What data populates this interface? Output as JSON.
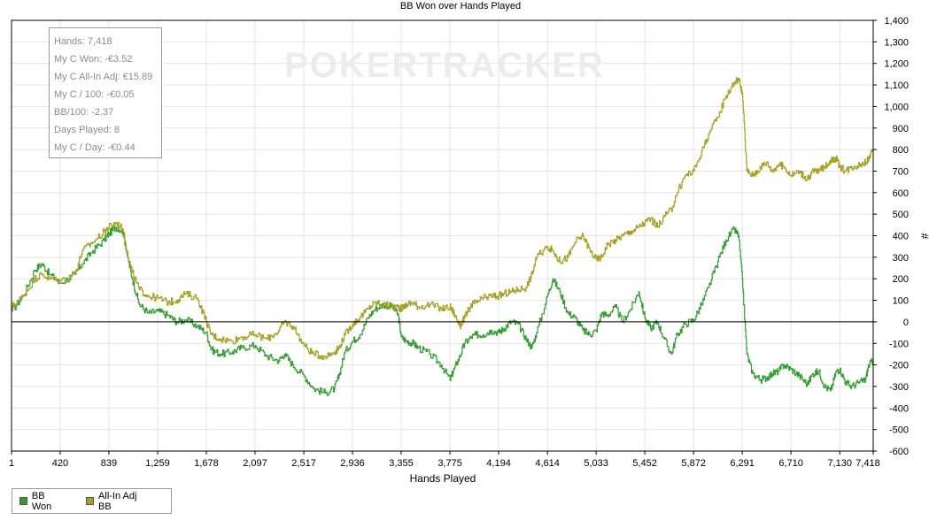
{
  "chart_data": {
    "type": "line",
    "title": "BB Won over Hands Played",
    "xlabel": "Hands Played",
    "ylabel": "#",
    "x_ticks": [
      "1",
      "420",
      "839",
      "1,259",
      "1,678",
      "2,097",
      "2,517",
      "2,936",
      "3,355",
      "3,775",
      "4,194",
      "4,614",
      "5,033",
      "5,452",
      "5,872",
      "6,291",
      "6,710",
      "7,130",
      "7,418"
    ],
    "x_tick_values": [
      1,
      420,
      839,
      1259,
      1678,
      2097,
      2517,
      2936,
      3355,
      3775,
      4194,
      4614,
      5033,
      5452,
      5872,
      6291,
      6710,
      7130,
      7418
    ],
    "xlim": [
      1,
      7418
    ],
    "y_ticks": [
      "1,400",
      "1,300",
      "1,200",
      "1,100",
      "1,000",
      "900",
      "800",
      "700",
      "600",
      "500",
      "400",
      "300",
      "200",
      "100",
      "0",
      "-100",
      "-200",
      "-300",
      "-400",
      "-500",
      "-600"
    ],
    "y_tick_values": [
      1400,
      1300,
      1200,
      1100,
      1000,
      900,
      800,
      700,
      600,
      500,
      400,
      300,
      200,
      100,
      0,
      -100,
      -200,
      -300,
      -400,
      -500,
      -600
    ],
    "ylim": [
      -600,
      1400
    ],
    "grid": true,
    "watermark": "POKERTRACKER",
    "legend_position": "bottom-left",
    "series": [
      {
        "name": "BB Won",
        "color": "#2ea02e",
        "x": [
          1,
          100,
          200,
          260,
          330,
          420,
          550,
          610,
          700,
          800,
          839,
          900,
          960,
          1000,
          1040,
          1100,
          1180,
          1259,
          1350,
          1420,
          1500,
          1600,
          1678,
          1720,
          1800,
          1900,
          1980,
          2097,
          2200,
          2300,
          2350,
          2420,
          2517,
          2600,
          2700,
          2780,
          2820,
          2870,
          2936,
          3000,
          3070,
          3130,
          3200,
          3280,
          3330,
          3355,
          3400,
          3460,
          3500,
          3600,
          3700,
          3775,
          3810,
          3860,
          3900,
          3960,
          4000,
          4060,
          4130,
          4194,
          4240,
          4300,
          4360,
          4430,
          4480,
          4520,
          4614,
          4660,
          4720,
          4790,
          4850,
          4920,
          4980,
          5033,
          5080,
          5130,
          5200,
          5260,
          5330,
          5400,
          5452,
          5500,
          5560,
          5620,
          5680,
          5730,
          5800,
          5872,
          5940,
          6000,
          6080,
          6150,
          6220,
          6260,
          6291,
          6330,
          6380,
          6450,
          6500,
          6550,
          6600,
          6650,
          6710,
          6780,
          6850,
          6900,
          6950,
          7000,
          7050,
          7100,
          7130,
          7180,
          7230,
          7300,
          7350,
          7380,
          7418
        ],
        "y": [
          50,
          120,
          240,
          270,
          220,
          180,
          220,
          270,
          330,
          380,
          410,
          440,
          420,
          300,
          200,
          80,
          40,
          50,
          30,
          0,
          10,
          -20,
          -50,
          -130,
          -150,
          -140,
          -120,
          -110,
          -160,
          -180,
          -150,
          -200,
          -250,
          -310,
          -330,
          -310,
          -250,
          -140,
          -90,
          -60,
          20,
          60,
          80,
          70,
          30,
          -70,
          -90,
          -100,
          -120,
          -150,
          -200,
          -270,
          -220,
          -160,
          -100,
          -70,
          -60,
          -60,
          -40,
          -50,
          -30,
          0,
          -10,
          -80,
          -120,
          -50,
          120,
          200,
          140,
          40,
          20,
          -40,
          -60,
          -40,
          40,
          30,
          70,
          0,
          60,
          140,
          20,
          -30,
          0,
          -80,
          -150,
          -60,
          -10,
          10,
          80,
          160,
          280,
          380,
          430,
          400,
          200,
          -150,
          -240,
          -270,
          -260,
          -240,
          -230,
          -200,
          -220,
          -250,
          -290,
          -240,
          -230,
          -300,
          -320,
          -230,
          -220,
          -280,
          -300,
          -280,
          -270,
          -200,
          -180
        ],
        "end_value": -180
      },
      {
        "name": "All-In Adj BB",
        "color": "#a8a020",
        "x": [
          1,
          100,
          200,
          260,
          330,
          420,
          550,
          610,
          700,
          800,
          839,
          900,
          960,
          1000,
          1040,
          1100,
          1180,
          1259,
          1350,
          1420,
          1500,
          1600,
          1678,
          1720,
          1800,
          1900,
          1980,
          2097,
          2200,
          2300,
          2350,
          2420,
          2517,
          2600,
          2700,
          2780,
          2820,
          2870,
          2936,
          3000,
          3070,
          3130,
          3200,
          3280,
          3330,
          3355,
          3400,
          3460,
          3500,
          3600,
          3700,
          3775,
          3810,
          3860,
          3900,
          3960,
          4000,
          4060,
          4130,
          4194,
          4240,
          4300,
          4360,
          4430,
          4480,
          4520,
          4614,
          4660,
          4720,
          4790,
          4850,
          4920,
          4980,
          5033,
          5080,
          5130,
          5200,
          5260,
          5330,
          5400,
          5452,
          5500,
          5560,
          5620,
          5680,
          5730,
          5800,
          5872,
          5940,
          6000,
          6080,
          6150,
          6220,
          6260,
          6291,
          6330,
          6380,
          6450,
          6500,
          6550,
          6600,
          6650,
          6710,
          6780,
          6850,
          6900,
          6950,
          7000,
          7050,
          7100,
          7130,
          7180,
          7230,
          7300,
          7350,
          7380,
          7418
        ],
        "y": [
          70,
          120,
          200,
          220,
          200,
          190,
          230,
          330,
          370,
          420,
          440,
          460,
          430,
          310,
          230,
          150,
          120,
          110,
          90,
          100,
          130,
          110,
          0,
          -60,
          -80,
          -90,
          -70,
          -60,
          -80,
          -40,
          0,
          -20,
          -110,
          -150,
          -160,
          -140,
          -120,
          -60,
          -10,
          20,
          60,
          90,
          80,
          70,
          70,
          60,
          80,
          90,
          70,
          80,
          60,
          70,
          40,
          -20,
          20,
          80,
          90,
          110,
          120,
          120,
          130,
          140,
          150,
          160,
          220,
          300,
          350,
          330,
          280,
          300,
          370,
          400,
          330,
          290,
          300,
          360,
          380,
          400,
          420,
          440,
          460,
          480,
          440,
          490,
          520,
          600,
          680,
          700,
          790,
          870,
          950,
          1050,
          1110,
          1130,
          1060,
          700,
          680,
          720,
          740,
          700,
          730,
          720,
          680,
          700,
          660,
          700,
          700,
          720,
          750,
          760,
          720,
          700,
          720,
          730,
          740,
          760,
          800
        ],
        "end_value": 800
      }
    ]
  },
  "stats": {
    "hands": "Hands: 7,418",
    "won": "My C Won: -€3.52",
    "allin_adj": "My C All-In Adj: €15.89",
    "per100": "My C / 100: -€0.05",
    "bb100": "BB/100: -2.37",
    "days": "Days Played: 8",
    "per_day": "My C / Day: -€0.44"
  },
  "legend": {
    "bb_won": "BB Won",
    "allin_adj": "All-In Adj BB",
    "bb_won_color": "#2ea02e",
    "allin_adj_color": "#a8a020"
  }
}
